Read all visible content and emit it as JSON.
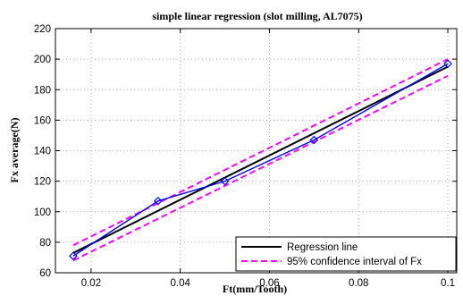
{
  "chart_data": {
    "type": "line",
    "title": "simple linear regression (slot milling, AL7075)",
    "xlabel": "Ft(mm/Tooth)",
    "ylabel": "Fx average(N)",
    "xlim": [
      0.012,
      0.102
    ],
    "ylim": [
      60,
      220
    ],
    "xticks": [
      0.02,
      0.04,
      0.06,
      0.08,
      0.1
    ],
    "xtick_labels": [
      "0.02",
      "0.04",
      "0.06",
      "0.08",
      "0.1"
    ],
    "yticks": [
      60,
      80,
      100,
      120,
      140,
      160,
      180,
      200,
      220
    ],
    "ytick_labels": [
      "60",
      "80",
      "100",
      "120",
      "140",
      "160",
      "180",
      "200",
      "220"
    ],
    "grid": true,
    "legend_position": "bottom-right",
    "series": [
      {
        "key": "measured",
        "style": "solid-blue-diamond-markers",
        "color": "#0000ff",
        "x": [
          0.016,
          0.035,
          0.05,
          0.07,
          0.1
        ],
        "y": [
          71,
          107,
          120,
          147,
          197
        ]
      },
      {
        "key": "regression",
        "name": "Regression line",
        "style": "solid",
        "color": "#000000",
        "x": [
          0.016,
          0.1
        ],
        "y": [
          73,
          195
        ]
      },
      {
        "key": "ci_upper",
        "name": "95% confidence interval of Fx",
        "style": "dashed",
        "color": "#ff00ff",
        "x": [
          0.016,
          0.1
        ],
        "y": [
          78,
          200
        ]
      },
      {
        "key": "ci_lower",
        "style": "dashed",
        "color": "#ff00ff",
        "x": [
          0.016,
          0.1
        ],
        "y": [
          68,
          189
        ]
      }
    ],
    "legend": [
      {
        "label": "Regression line",
        "color": "#000000",
        "style": "solid"
      },
      {
        "label": "95% confidence interval of Fx",
        "color": "#ff00ff",
        "style": "dashed"
      }
    ]
  }
}
